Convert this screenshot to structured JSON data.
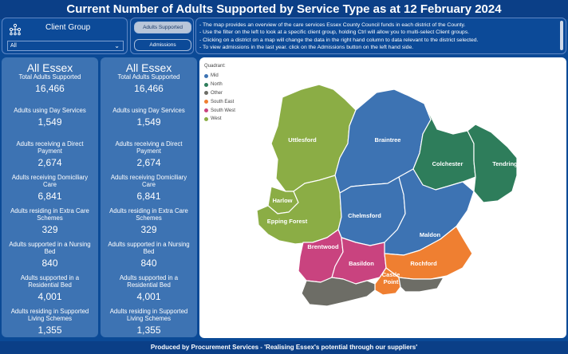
{
  "title": "Current Number of Adults Supported by Service Type as at 12 February 2024",
  "filter": {
    "label": "Client Group",
    "value": "All",
    "icon": "hierarchy-icon"
  },
  "buttons": {
    "supported": "Adults Supported",
    "admissions": "Admissions"
  },
  "info": [
    "- The map provides an overview of the care services Essex County Council funds in each district of the County.",
    "- Use the filter on the left to look at a specific client group, holding Ctrl will allow you to multi-select Client groups.",
    "- Clicking on a district on a map will change the data in the right hand column to data relevant to the district selected.",
    "- To view admissions in the last year. click on the Admissions button on the left hand side."
  ],
  "left_column": {
    "heading": "All Essex",
    "stats": [
      {
        "label": "Total Adults Supported",
        "value": "16,466"
      },
      {
        "label": "Adults using Day Services",
        "value": "1,549"
      },
      {
        "label": "Adults receiving a Direct Payment",
        "value": "2,674"
      },
      {
        "label": "Adults receiving Domiciliary Care",
        "value": "6,841"
      },
      {
        "label": "Adults residing in Extra Care Schemes",
        "value": "329"
      },
      {
        "label": "Adults supported in a Nursing Bed",
        "value": "840"
      },
      {
        "label": "Adults supported in a Residential Bed",
        "value": "4,001"
      },
      {
        "label": "Adults residing in Supported Living Schemes",
        "value": "1,355"
      }
    ]
  },
  "right_column": {
    "heading": "All Essex",
    "stats": [
      {
        "label": "Total Adults Supported",
        "value": "16,466"
      },
      {
        "label": "Adults using Day Services",
        "value": "1,549"
      },
      {
        "label": "Adults receiving a Direct Payment",
        "value": "2,674"
      },
      {
        "label": "Adults receiving Domiciliary Care",
        "value": "6,841"
      },
      {
        "label": "Adults residing in Extra Care Schemes",
        "value": "329"
      },
      {
        "label": "Adults supported in a Nursing Bed",
        "value": "840"
      },
      {
        "label": "Adults supported in a Residential Bed",
        "value": "4,001"
      },
      {
        "label": "Adults residing in Supported Living Schemes",
        "value": "1,355"
      }
    ]
  },
  "legend": {
    "title": "Quadrant:",
    "items": [
      {
        "label": "Mid",
        "color": "#3d73b3"
      },
      {
        "label": "North",
        "color": "#2e7d5b"
      },
      {
        "label": "Other",
        "color": "#6d6d66"
      },
      {
        "label": "South East",
        "color": "#ef7f31"
      },
      {
        "label": "South West",
        "color": "#c9437f"
      },
      {
        "label": "West",
        "color": "#8bad45"
      }
    ]
  },
  "districts": {
    "uttlesford": "Uttlesford",
    "braintree": "Braintree",
    "colchester": "Colchester",
    "tendring": "Tendring",
    "harlow": "Harlow",
    "epping": "Epping Forest",
    "chelmsford": "Chelmsford",
    "maldon": "Maldon",
    "brentwood": "Brentwood",
    "basildon": "Basildon",
    "rochford": "Rochford",
    "castle_point": "Castle Point"
  },
  "footer": "Produced by Procurement Services - 'Realising Essex's potential through our suppliers'"
}
